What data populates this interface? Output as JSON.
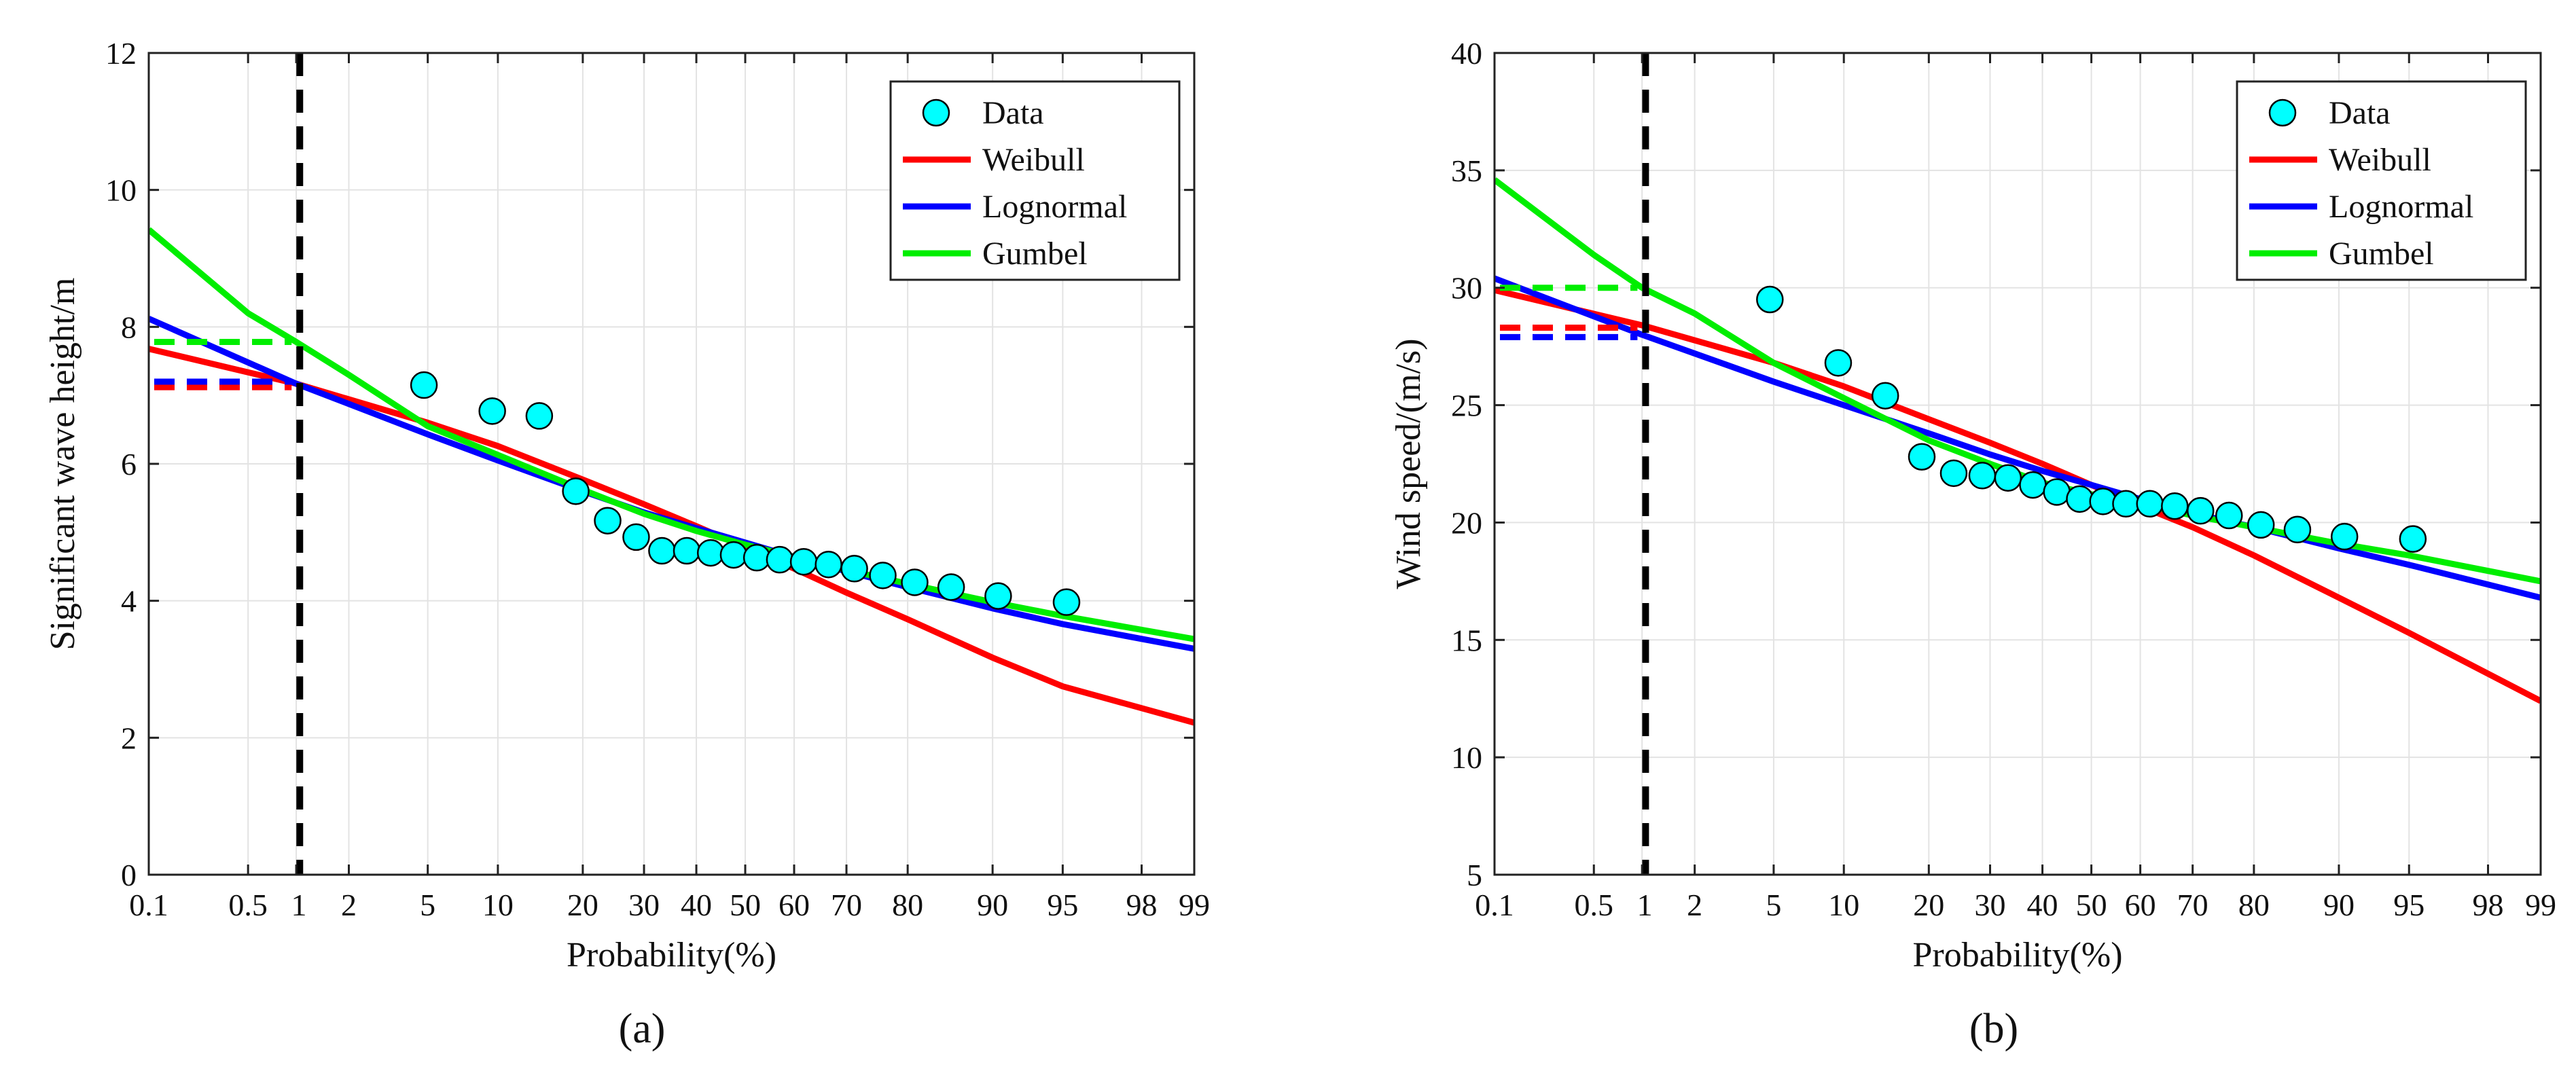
{
  "chart_data": [
    {
      "panel_label": "(a)",
      "type": "line",
      "xlabel": "Probability(%)",
      "ylabel": "Significant wave height/m",
      "x_scale": "normal-probability",
      "x_ticks": [
        0.1,
        0.5,
        1,
        2,
        5,
        10,
        20,
        30,
        40,
        50,
        60,
        70,
        80,
        90,
        95,
        98,
        99
      ],
      "x_tick_labels": [
        "0.1",
        "0.5",
        "1",
        "2",
        "5",
        "10",
        "20",
        "30",
        "40",
        "50",
        "60",
        "70",
        "80",
        "90",
        "95",
        "98",
        "99"
      ],
      "xlim": [
        0.1,
        99
      ],
      "ylim": [
        0,
        12
      ],
      "y_ticks": [
        0,
        2,
        4,
        6,
        8,
        10,
        12
      ],
      "y_tick_labels": [
        "0",
        "2",
        "4",
        "6",
        "8",
        "10",
        "12"
      ],
      "grid": true,
      "legend_position": "top-right",
      "vline": {
        "x": 1.05,
        "style": "dashed",
        "color": "#000000"
      },
      "series": [
        {
          "name": "Data",
          "kind": "scatter",
          "color": "#00FFFF",
          "x": [
            4.8,
            9.5,
            14.3,
            19.0,
            23.8,
            28.6,
            33.3,
            38.1,
            42.9,
            47.6,
            52.4,
            57.1,
            61.9,
            66.7,
            71.4,
            76.2,
            81.0,
            85.7,
            90.5,
            95.2
          ],
          "y": [
            7.15,
            6.77,
            6.7,
            5.6,
            5.17,
            4.93,
            4.73,
            4.73,
            4.7,
            4.67,
            4.63,
            4.6,
            4.57,
            4.53,
            4.47,
            4.37,
            4.27,
            4.2,
            4.07,
            3.98
          ]
        },
        {
          "name": "Weibull",
          "kind": "line",
          "color": "#FF0000",
          "x": [
            0.1,
            1,
            5,
            10,
            20,
            30,
            40,
            50,
            60,
            70,
            80,
            90,
            95,
            99
          ],
          "y": [
            7.68,
            7.17,
            6.6,
            6.26,
            5.77,
            5.41,
            5.09,
            4.78,
            4.47,
            4.12,
            3.73,
            3.17,
            2.75,
            2.22
          ]
        },
        {
          "name": "Lognormal",
          "kind": "line",
          "color": "#0000FF",
          "x": [
            0.1,
            1,
            5,
            10,
            20,
            30,
            40,
            50,
            60,
            70,
            80,
            90,
            95,
            99
          ],
          "y": [
            8.12,
            7.17,
            6.43,
            6.05,
            5.6,
            5.29,
            5.06,
            4.85,
            4.64,
            4.43,
            4.2,
            3.89,
            3.66,
            3.3
          ]
        },
        {
          "name": "Gumbel",
          "kind": "line",
          "color": "#00EE00",
          "x": [
            0.1,
            0.5,
            1,
            2,
            5,
            10,
            20,
            30,
            40,
            50,
            60,
            70,
            80,
            90,
            95,
            99
          ],
          "y": [
            9.42,
            8.2,
            7.78,
            7.3,
            6.55,
            6.13,
            5.62,
            5.27,
            5.02,
            4.82,
            4.64,
            4.45,
            4.25,
            3.98,
            3.78,
            3.44
          ]
        }
      ],
      "return_levels": [
        {
          "series": "Gumbel",
          "y": 7.78,
          "color": "#00EE00"
        },
        {
          "series": "Weibull",
          "y": 7.12,
          "color": "#FF0000"
        },
        {
          "series": "Lognormal",
          "y": 7.2,
          "color": "#0000FF"
        }
      ]
    },
    {
      "panel_label": "(b)",
      "type": "line",
      "xlabel": "Probability(%)",
      "ylabel": "Wind speed/(m/s)",
      "x_scale": "normal-probability",
      "x_ticks": [
        0.1,
        0.5,
        1,
        2,
        5,
        10,
        20,
        30,
        40,
        50,
        60,
        70,
        80,
        90,
        95,
        98,
        99
      ],
      "x_tick_labels": [
        "0.1",
        "0.5",
        "1",
        "2",
        "5",
        "10",
        "20",
        "30",
        "40",
        "50",
        "60",
        "70",
        "80",
        "90",
        "95",
        "98",
        "99"
      ],
      "xlim": [
        0.1,
        99
      ],
      "ylim": [
        5,
        40
      ],
      "y_ticks": [
        5,
        10,
        15,
        20,
        25,
        30,
        35,
        40
      ],
      "y_tick_labels": [
        "5",
        "10",
        "15",
        "20",
        "25",
        "30",
        "35",
        "40"
      ],
      "grid": true,
      "legend_position": "top-right",
      "vline": {
        "x": 1.05,
        "style": "dashed",
        "color": "#000000"
      },
      "series": [
        {
          "name": "Data",
          "kind": "scatter",
          "color": "#00FFFF",
          "x": [
            4.8,
            9.5,
            14.3,
            19.0,
            23.8,
            28.6,
            33.3,
            38.1,
            42.9,
            47.6,
            52.4,
            57.1,
            61.9,
            66.7,
            71.4,
            76.2,
            81.0,
            85.7,
            90.5,
            95.2
          ],
          "y": [
            29.5,
            26.8,
            25.4,
            22.8,
            22.1,
            22.0,
            21.9,
            21.6,
            21.3,
            21.0,
            20.9,
            20.8,
            20.8,
            20.7,
            20.5,
            20.3,
            19.9,
            19.7,
            19.4,
            19.3
          ]
        },
        {
          "name": "Weibull",
          "kind": "line",
          "color": "#FF0000",
          "x": [
            0.1,
            1,
            5,
            10,
            20,
            30,
            40,
            50,
            60,
            70,
            80,
            90,
            95,
            99
          ],
          "y": [
            29.9,
            28.4,
            26.8,
            25.8,
            24.4,
            23.4,
            22.5,
            21.6,
            20.7,
            19.8,
            18.6,
            16.8,
            15.3,
            12.4
          ]
        },
        {
          "name": "Lognormal",
          "kind": "line",
          "color": "#0000FF",
          "x": [
            0.1,
            1,
            5,
            10,
            20,
            30,
            40,
            50,
            60,
            70,
            80,
            90,
            95,
            99
          ],
          "y": [
            30.4,
            28.0,
            26.0,
            25.0,
            23.8,
            22.9,
            22.2,
            21.6,
            21.0,
            20.4,
            19.8,
            18.9,
            18.2,
            16.8
          ]
        },
        {
          "name": "Gumbel",
          "kind": "line",
          "color": "#00EE00",
          "x": [
            0.1,
            0.5,
            1,
            2,
            5,
            10,
            20,
            30,
            40,
            50,
            60,
            70,
            80,
            90,
            95,
            99
          ],
          "y": [
            34.6,
            31.4,
            30.0,
            28.9,
            26.8,
            25.3,
            23.5,
            22.5,
            21.7,
            21.2,
            20.8,
            20.3,
            19.8,
            19.1,
            18.6,
            17.5
          ]
        }
      ],
      "return_levels": [
        {
          "series": "Gumbel",
          "y": 30.0,
          "color": "#00EE00"
        },
        {
          "series": "Weibull",
          "y": 28.3,
          "color": "#FF0000"
        },
        {
          "series": "Lognormal",
          "y": 27.9,
          "color": "#0000FF"
        }
      ]
    }
  ]
}
